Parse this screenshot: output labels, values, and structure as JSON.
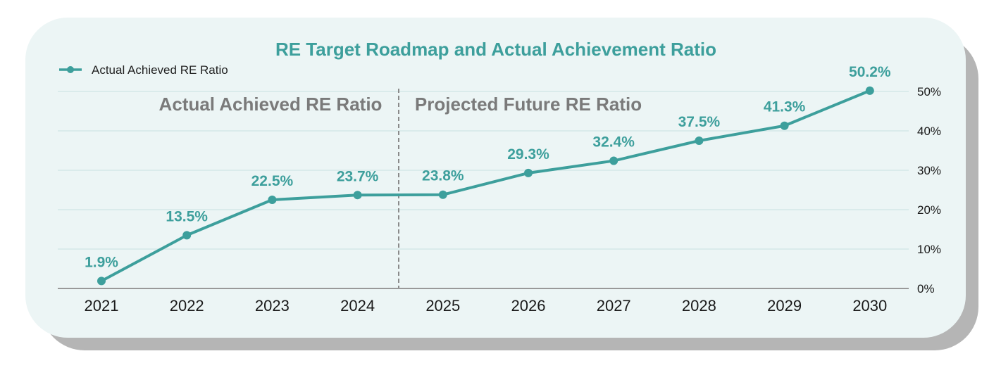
{
  "chart_data": {
    "type": "line",
    "title": "RE Target Roadmap and Actual Achievement Ratio",
    "categories": [
      "2021",
      "2022",
      "2023",
      "2024",
      "2025",
      "2026",
      "2027",
      "2028",
      "2029",
      "2030"
    ],
    "series": [
      {
        "name": "Actual Achieved RE Ratio",
        "values": [
          1.9,
          13.5,
          22.5,
          23.7,
          23.8,
          29.3,
          32.4,
          37.5,
          41.3,
          50.2
        ],
        "labels": [
          "1.9%",
          "13.5%",
          "22.5%",
          "23.7%",
          "23.8%",
          "29.3%",
          "32.4%",
          "37.5%",
          "41.3%",
          "50.2%"
        ]
      }
    ],
    "section_labels": [
      "Actual Achieved RE Ratio",
      "Projected Future RE Ratio"
    ],
    "yticks": [
      "0%",
      "10%",
      "20%",
      "30%",
      "40%",
      "50%"
    ],
    "ylim": [
      0,
      50
    ],
    "y_axis_side": "right",
    "grid": true,
    "legend_position": "top-left",
    "colors": {
      "line": "#3d9f9c",
      "grid": "#d3e8e8",
      "card": "#ecf5f5",
      "divider": "#8a8a8a"
    }
  }
}
